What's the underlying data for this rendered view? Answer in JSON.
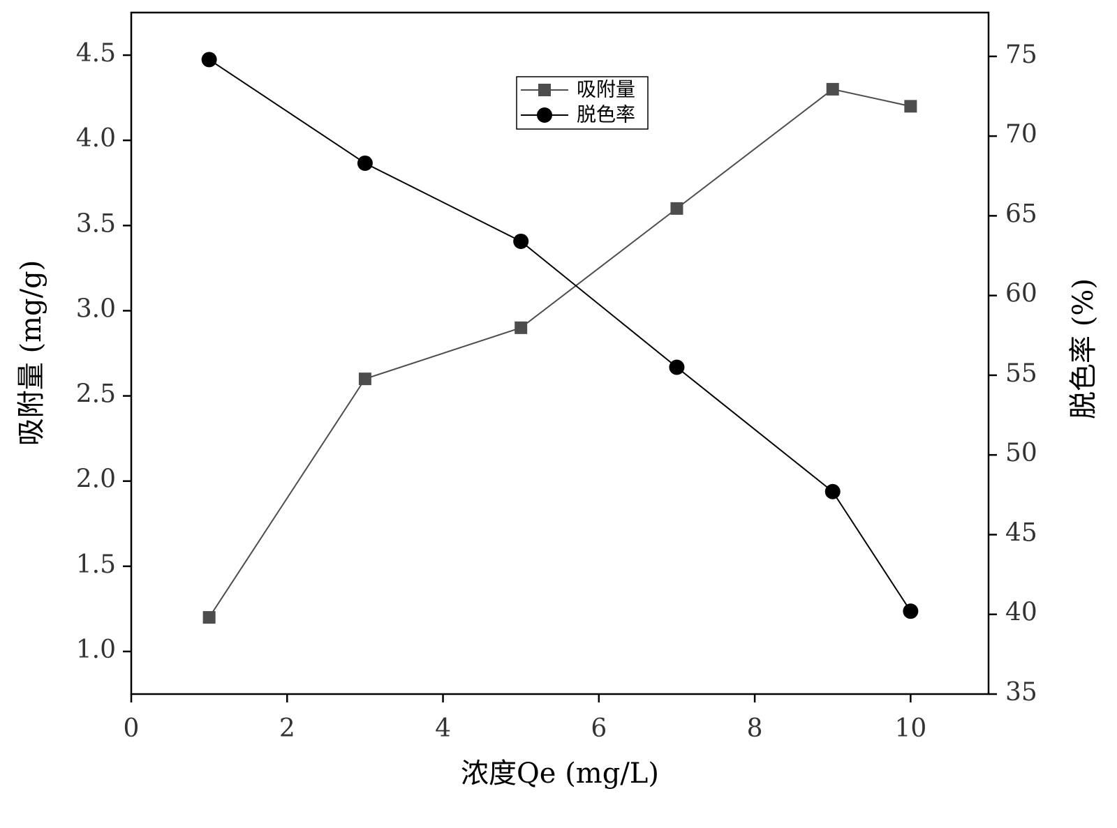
{
  "chart_data": {
    "type": "line",
    "xlabel": "浓度Qe (mg/L)",
    "ylabel": "吸附量 (mg/g)",
    "y2label": "脱色率 (%)",
    "x": [
      1,
      3,
      5,
      7,
      9,
      10
    ],
    "series": [
      {
        "name": "吸附量",
        "color": "#4d4d4d",
        "marker": "square",
        "values": [
          1.2,
          2.6,
          2.9,
          3.6,
          4.3,
          4.2
        ]
      },
      {
        "name": "脱色率",
        "color": "#000000",
        "marker": "circle",
        "axis": "y2",
        "values": [
          74.8,
          68.3,
          63.4,
          55.5,
          47.7,
          40.2
        ]
      }
    ],
    "xlim": [
      0,
      11
    ],
    "xticks": [
      0,
      2,
      4,
      6,
      8,
      10
    ],
    "ylim": [
      0.75,
      4.75
    ],
    "yticks": [
      {
        "value": 1,
        "label": "1.0"
      },
      1.5,
      {
        "value": 2,
        "label": "2.0"
      },
      2.5,
      {
        "value": 3,
        "label": "3.0"
      },
      3.5,
      {
        "value": 4,
        "label": "4.0"
      },
      4.5
    ],
    "y2lim": [
      35,
      77.75
    ],
    "y2ticks": [
      35,
      40,
      45,
      50,
      55,
      60,
      65,
      70,
      75
    ],
    "grid": false,
    "legend": "upper center"
  }
}
